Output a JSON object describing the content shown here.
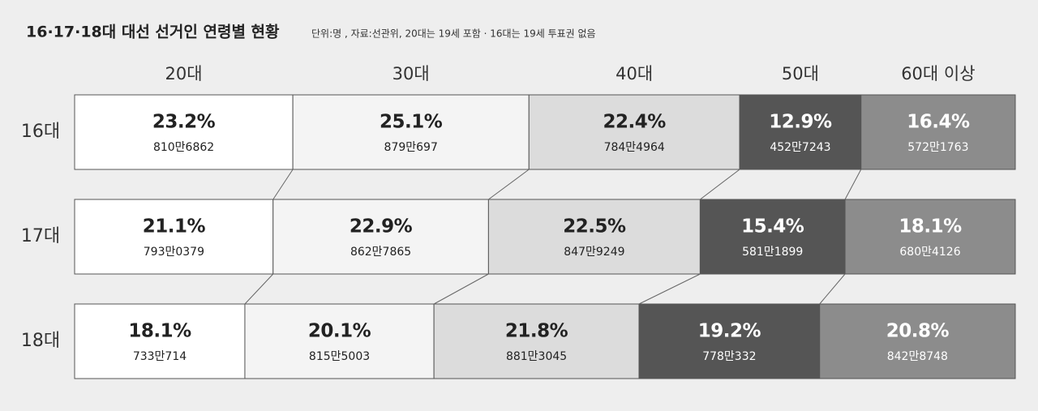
{
  "chart_data": {
    "type": "bar",
    "orientation": "horizontal",
    "stacked": true,
    "title": "16·17·18대 대선 선거인 연령별 현황",
    "subtitle": "단위:명 , 자료:선관위, 20대는 19세 포함 · 16대는 19세 투표권 없음",
    "categories": [
      "16대",
      "17대",
      "18대"
    ],
    "series": [
      {
        "name": "20대",
        "color": "#ffffff",
        "values": [
          23.2,
          21.1,
          18.1
        ],
        "value_labels": [
          "23.2%",
          "21.1%",
          "18.1%"
        ],
        "counts": [
          "810만6862",
          "793만0379",
          "733만714"
        ]
      },
      {
        "name": "30대",
        "color": "#f4f4f4",
        "values": [
          25.1,
          22.9,
          20.1
        ],
        "value_labels": [
          "25.1%",
          "22.9%",
          "20.1%"
        ],
        "counts": [
          "879만697",
          "862만7865",
          "815만5003"
        ]
      },
      {
        "name": "40대",
        "color": "#dcdcdc",
        "values": [
          22.4,
          22.5,
          21.8
        ],
        "value_labels": [
          "22.4%",
          "22.5%",
          "21.8%"
        ],
        "counts": [
          "784만4964",
          "847만9249",
          "881만3045"
        ]
      },
      {
        "name": "50대",
        "color": "#555555",
        "values": [
          12.9,
          15.4,
          19.2
        ],
        "value_labels": [
          "12.9%",
          "15.4%",
          "19.2%"
        ],
        "counts": [
          "452만7243",
          "581만1899",
          "778만332"
        ]
      },
      {
        "name": "60대 이상",
        "color": "#8c8c8c",
        "values": [
          16.4,
          18.1,
          20.8
        ],
        "value_labels": [
          "16.4%",
          "18.1%",
          "20.8%"
        ],
        "counts": [
          "572만1763",
          "680만4126",
          "842만8748"
        ]
      }
    ]
  }
}
